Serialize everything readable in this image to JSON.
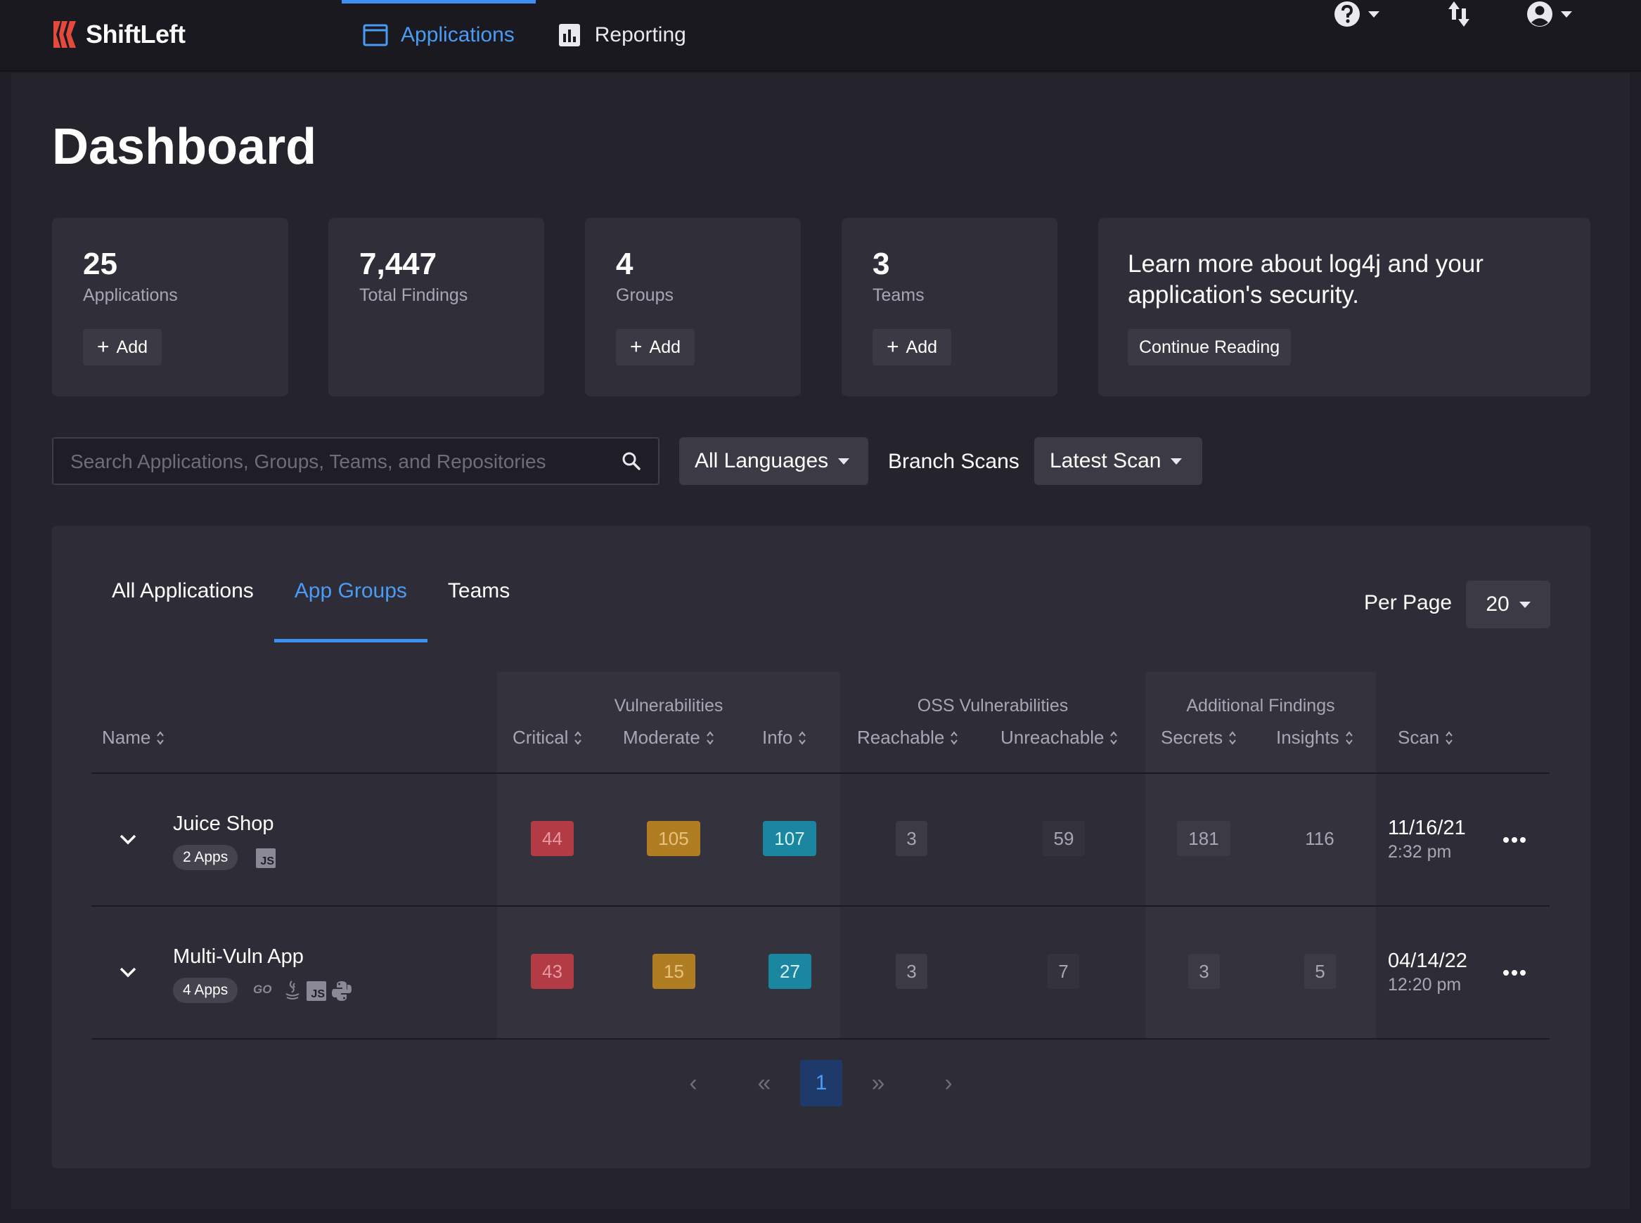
{
  "app": {
    "name": "ShiftLeft"
  },
  "colors": {
    "accent": "#3d8ff0",
    "brand": "#e5493b",
    "critical": "#b23b45",
    "moderate": "#b07d22",
    "info": "#1b86a0"
  },
  "nav": {
    "items": [
      {
        "label": "Applications",
        "icon": "window-icon",
        "active": true
      },
      {
        "label": "Reporting",
        "icon": "bar-chart-icon",
        "active": false
      }
    ]
  },
  "page": {
    "title": "Dashboard"
  },
  "stats": {
    "applications": {
      "value": "25",
      "label": "Applications",
      "add": "Add"
    },
    "findings": {
      "value": "7,447",
      "label": "Total Findings"
    },
    "groups": {
      "value": "4",
      "label": "Groups",
      "add": "Add"
    },
    "teams": {
      "value": "3",
      "label": "Teams",
      "add": "Add"
    }
  },
  "promo": {
    "text": "Learn more about log4j and your application's security.",
    "button": "Continue Reading"
  },
  "filters": {
    "search_placeholder": "Search Applications, Groups, Teams, and Repositories",
    "language": "All Languages",
    "branch_label": "Branch Scans",
    "scan": "Latest Scan"
  },
  "tabs": [
    {
      "label": "All Applications",
      "active": false
    },
    {
      "label": "App Groups",
      "active": true
    },
    {
      "label": "Teams",
      "active": false
    }
  ],
  "per_page": {
    "label": "Per Page",
    "value": "20"
  },
  "table": {
    "groups": {
      "vulns": "Vulnerabilities",
      "oss": "OSS Vulnerabilities",
      "additional": "Additional Findings"
    },
    "columns": {
      "name": "Name",
      "critical": "Critical",
      "moderate": "Moderate",
      "info": "Info",
      "reachable": "Reachable",
      "unreachable": "Unreachable",
      "secrets": "Secrets",
      "insights": "Insights",
      "scan": "Scan"
    },
    "rows": [
      {
        "name": "Juice Shop",
        "apps": "2 Apps",
        "languages": [
          "javascript"
        ],
        "critical": "44",
        "moderate": "105",
        "info": "107",
        "reachable": "3",
        "unreachable": "59",
        "secrets": "181",
        "insights": "116",
        "scan_date": "11/16/21",
        "scan_time": "2:32 pm"
      },
      {
        "name": "Multi-Vuln App",
        "apps": "4 Apps",
        "languages": [
          "go",
          "java",
          "javascript",
          "python"
        ],
        "critical": "43",
        "moderate": "15",
        "info": "27",
        "reachable": "3",
        "unreachable": "7",
        "secrets": "3",
        "insights": "5",
        "scan_date": "04/14/22",
        "scan_time": "12:20 pm"
      }
    ]
  },
  "pagination": {
    "current": "1",
    "first": "«",
    "last": "»",
    "prev": "‹",
    "next": "›"
  },
  "lang_labels": {
    "js": "JS",
    "go": "GO"
  }
}
